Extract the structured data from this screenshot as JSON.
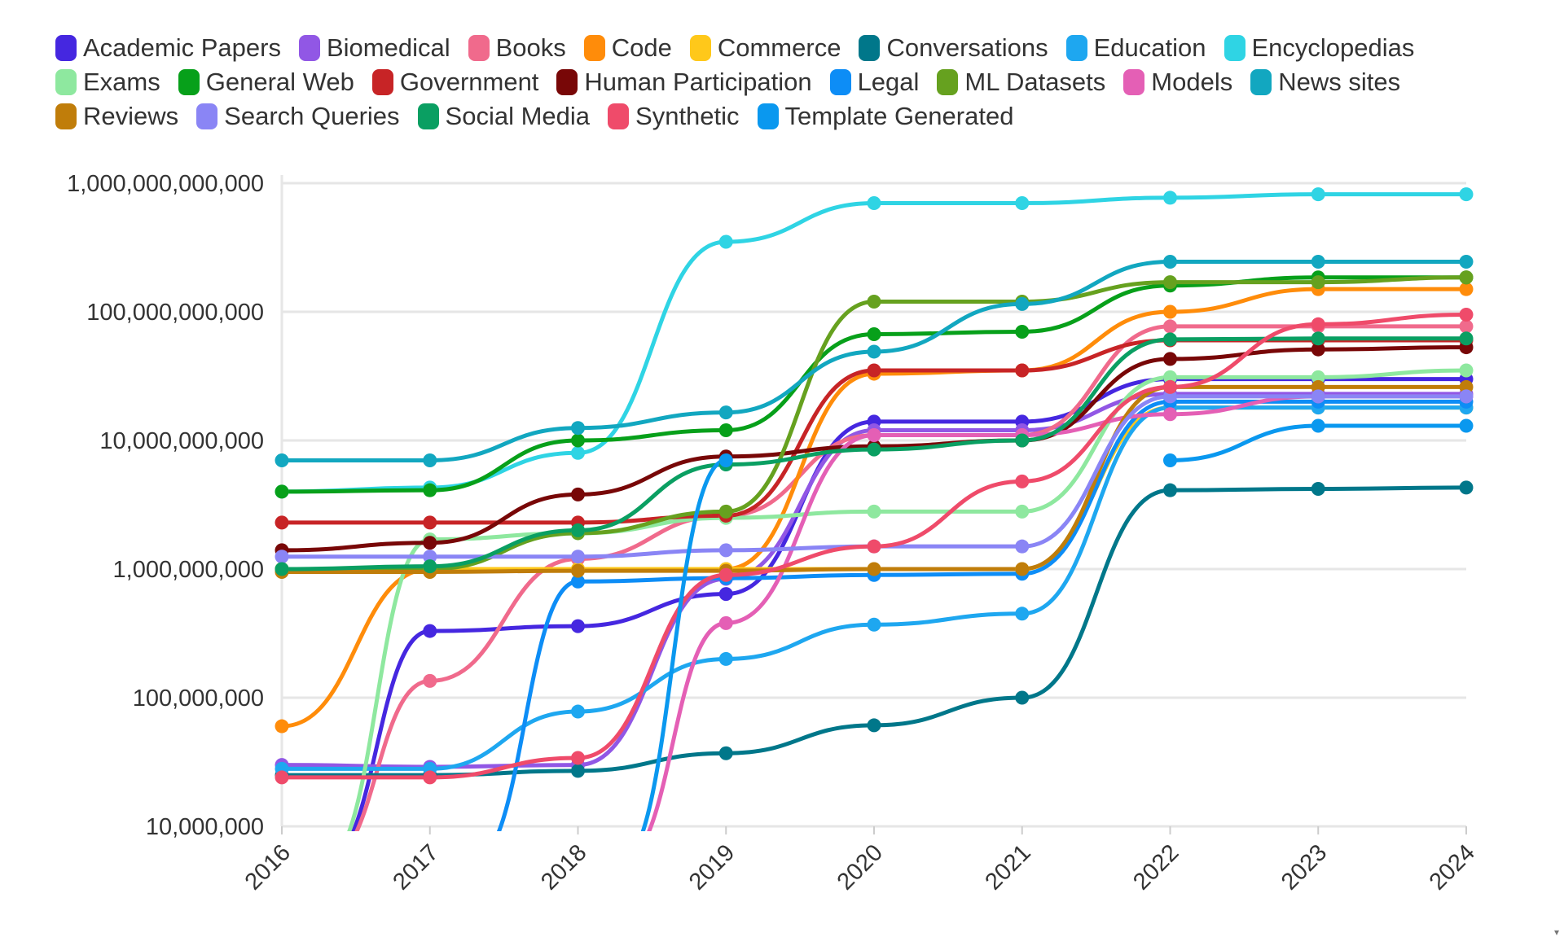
{
  "chart_data": {
    "type": "line",
    "title": "",
    "xlabel": "",
    "ylabel": "",
    "x": [
      "2016",
      "2017",
      "2018",
      "2019",
      "2020",
      "2021",
      "2022",
      "2023",
      "2024"
    ],
    "y_scale": "log",
    "ylim": [
      10000000,
      1000000000000
    ],
    "y_ticks": [
      "10,000,000",
      "100,000,000",
      "1,000,000,000",
      "10,000,000,000",
      "100,000,000,000",
      "1,000,000,000,000"
    ],
    "grid": true,
    "legend_position": "top",
    "series": [
      {
        "name": "Academic Papers",
        "color": "#4527e0",
        "values": [
          null,
          330000000,
          360000000,
          640000000,
          14000000000,
          14000000000,
          30000000000,
          30000000000,
          30000000000
        ]
      },
      {
        "name": "Biomedical",
        "color": "#9157e5",
        "values": [
          30000000,
          29000000,
          30000000,
          840000000,
          12000000000,
          12000000000,
          23000000000,
          23000000000,
          23000000000
        ]
      },
      {
        "name": "Books",
        "color": "#f06a8c",
        "values": [
          null,
          135000000,
          1200000000,
          2600000000,
          11000000000,
          11000000000,
          77000000000,
          77000000000,
          77000000000
        ]
      },
      {
        "name": "Code",
        "color": "#ff8c0a",
        "values": [
          60000000,
          1000000000,
          1000000000,
          1000000000,
          33000000000,
          35000000000,
          100000000000,
          150000000000,
          150000000000
        ]
      },
      {
        "name": "Commerce",
        "color": "#ffc81a",
        "values": [
          1000000000,
          1000000000,
          1000000000,
          1000000000,
          1000000000,
          1000000000,
          18000000000,
          18000000000,
          18000000000
        ]
      },
      {
        "name": "Conversations",
        "color": "#00778a",
        "values": [
          25000000,
          25000000,
          27000000,
          37000000,
          61000000,
          100000000,
          4100000000,
          4200000000,
          4300000000
        ]
      },
      {
        "name": "Education",
        "color": "#1ea7f0",
        "values": [
          28000000,
          28000000,
          78000000,
          200000000,
          370000000,
          450000000,
          18000000000,
          18000000000,
          18000000000
        ]
      },
      {
        "name": "Encyclopedias",
        "color": "#2fd4e4",
        "values": [
          4000000000,
          4300000000,
          8000000000,
          350000000000,
          700000000000,
          700000000000,
          770000000000,
          820000000000,
          820000000000
        ]
      },
      {
        "name": "Exams",
        "color": "#8ee89f",
        "values": [
          null,
          1700000000,
          1900000000,
          2500000000,
          2800000000,
          2800000000,
          31000000000,
          31000000000,
          35000000000
        ]
      },
      {
        "name": "General Web",
        "color": "#07a01a",
        "values": [
          4000000000,
          4100000000,
          10000000000,
          12000000000,
          67000000000,
          70000000000,
          160000000000,
          185000000000,
          185000000000
        ]
      },
      {
        "name": "Government",
        "color": "#c72426",
        "values": [
          2300000000,
          2300000000,
          2300000000,
          2600000000,
          35000000000,
          35000000000,
          60000000000,
          60000000000,
          60000000000
        ]
      },
      {
        "name": "Human Participation",
        "color": "#780707",
        "values": [
          1400000000,
          1600000000,
          3800000000,
          7500000000,
          9000000000,
          10000000000,
          43000000000,
          51000000000,
          53000000000
        ]
      },
      {
        "name": "Legal",
        "color": "#0d8df6",
        "values": [
          null,
          null,
          800000000,
          850000000,
          900000000,
          920000000,
          20000000000,
          20000000000,
          20000000000
        ]
      },
      {
        "name": "ML Datasets",
        "color": "#66a11f",
        "values": [
          1000000000,
          1000000000,
          1900000000,
          2800000000,
          120000000000,
          120000000000,
          170000000000,
          170000000000,
          185000000000
        ]
      },
      {
        "name": "Models",
        "color": "#e45fb5",
        "values": [
          null,
          null,
          null,
          380000000,
          11000000000,
          11000000000,
          16000000000,
          22000000000,
          22000000000
        ]
      },
      {
        "name": "News sites",
        "color": "#12a7c0",
        "values": [
          7000000000,
          7000000000,
          12500000000,
          16500000000,
          49000000000,
          115000000000,
          245000000000,
          245000000000,
          245000000000
        ]
      },
      {
        "name": "Reviews",
        "color": "#c07d0a",
        "values": [
          950000000,
          950000000,
          970000000,
          970000000,
          1000000000,
          1000000000,
          26000000000,
          26000000000,
          26000000000
        ]
      },
      {
        "name": "Search Queries",
        "color": "#8a85f5",
        "values": [
          1250000000,
          1250000000,
          1250000000,
          1400000000,
          1500000000,
          1500000000,
          22000000000,
          22000000000,
          22000000000
        ]
      },
      {
        "name": "Social Media",
        "color": "#0a9f62",
        "values": [
          1000000000,
          1050000000,
          2000000000,
          6500000000,
          8500000000,
          10000000000,
          61000000000,
          62000000000,
          62000000000
        ]
      },
      {
        "name": "Synthetic",
        "color": "#ef4b6a",
        "values": [
          24000000,
          24000000,
          34000000,
          900000000,
          1500000000,
          4800000000,
          26000000000,
          80000000000,
          95000000000
        ]
      },
      {
        "name": "Template Generated",
        "color": "#0a98ef",
        "values": [
          null,
          null,
          null,
          7000000000,
          null,
          null,
          7000000000,
          13000000000,
          13000000000
        ]
      }
    ]
  }
}
